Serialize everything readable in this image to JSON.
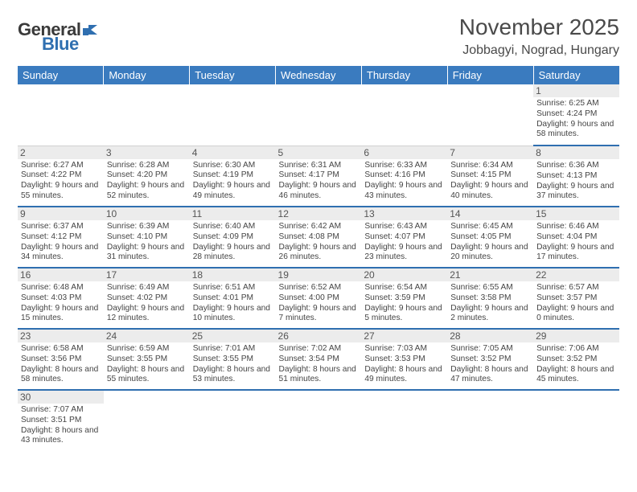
{
  "logo": {
    "word1": "General",
    "word2": "Blue"
  },
  "title": "November 2025",
  "location": "Jobbagyi, Nograd, Hungary",
  "colors": {
    "header_bg": "#3a7bbf",
    "header_fg": "#ffffff",
    "accent": "#2f6fb0",
    "daynum_bg": "#ececec",
    "text": "#444444"
  },
  "weekdays": [
    "Sunday",
    "Monday",
    "Tuesday",
    "Wednesday",
    "Thursday",
    "Friday",
    "Saturday"
  ],
  "weeks": [
    [
      null,
      null,
      null,
      null,
      null,
      null,
      {
        "n": "1",
        "sr": "Sunrise: 6:25 AM",
        "ss": "Sunset: 4:24 PM",
        "dl": "Daylight: 9 hours and 58 minutes."
      }
    ],
    [
      {
        "n": "2",
        "sr": "Sunrise: 6:27 AM",
        "ss": "Sunset: 4:22 PM",
        "dl": "Daylight: 9 hours and 55 minutes."
      },
      {
        "n": "3",
        "sr": "Sunrise: 6:28 AM",
        "ss": "Sunset: 4:20 PM",
        "dl": "Daylight: 9 hours and 52 minutes."
      },
      {
        "n": "4",
        "sr": "Sunrise: 6:30 AM",
        "ss": "Sunset: 4:19 PM",
        "dl": "Daylight: 9 hours and 49 minutes."
      },
      {
        "n": "5",
        "sr": "Sunrise: 6:31 AM",
        "ss": "Sunset: 4:17 PM",
        "dl": "Daylight: 9 hours and 46 minutes."
      },
      {
        "n": "6",
        "sr": "Sunrise: 6:33 AM",
        "ss": "Sunset: 4:16 PM",
        "dl": "Daylight: 9 hours and 43 minutes."
      },
      {
        "n": "7",
        "sr": "Sunrise: 6:34 AM",
        "ss": "Sunset: 4:15 PM",
        "dl": "Daylight: 9 hours and 40 minutes."
      },
      {
        "n": "8",
        "sr": "Sunrise: 6:36 AM",
        "ss": "Sunset: 4:13 PM",
        "dl": "Daylight: 9 hours and 37 minutes."
      }
    ],
    [
      {
        "n": "9",
        "sr": "Sunrise: 6:37 AM",
        "ss": "Sunset: 4:12 PM",
        "dl": "Daylight: 9 hours and 34 minutes."
      },
      {
        "n": "10",
        "sr": "Sunrise: 6:39 AM",
        "ss": "Sunset: 4:10 PM",
        "dl": "Daylight: 9 hours and 31 minutes."
      },
      {
        "n": "11",
        "sr": "Sunrise: 6:40 AM",
        "ss": "Sunset: 4:09 PM",
        "dl": "Daylight: 9 hours and 28 minutes."
      },
      {
        "n": "12",
        "sr": "Sunrise: 6:42 AM",
        "ss": "Sunset: 4:08 PM",
        "dl": "Daylight: 9 hours and 26 minutes."
      },
      {
        "n": "13",
        "sr": "Sunrise: 6:43 AM",
        "ss": "Sunset: 4:07 PM",
        "dl": "Daylight: 9 hours and 23 minutes."
      },
      {
        "n": "14",
        "sr": "Sunrise: 6:45 AM",
        "ss": "Sunset: 4:05 PM",
        "dl": "Daylight: 9 hours and 20 minutes."
      },
      {
        "n": "15",
        "sr": "Sunrise: 6:46 AM",
        "ss": "Sunset: 4:04 PM",
        "dl": "Daylight: 9 hours and 17 minutes."
      }
    ],
    [
      {
        "n": "16",
        "sr": "Sunrise: 6:48 AM",
        "ss": "Sunset: 4:03 PM",
        "dl": "Daylight: 9 hours and 15 minutes."
      },
      {
        "n": "17",
        "sr": "Sunrise: 6:49 AM",
        "ss": "Sunset: 4:02 PM",
        "dl": "Daylight: 9 hours and 12 minutes."
      },
      {
        "n": "18",
        "sr": "Sunrise: 6:51 AM",
        "ss": "Sunset: 4:01 PM",
        "dl": "Daylight: 9 hours and 10 minutes."
      },
      {
        "n": "19",
        "sr": "Sunrise: 6:52 AM",
        "ss": "Sunset: 4:00 PM",
        "dl": "Daylight: 9 hours and 7 minutes."
      },
      {
        "n": "20",
        "sr": "Sunrise: 6:54 AM",
        "ss": "Sunset: 3:59 PM",
        "dl": "Daylight: 9 hours and 5 minutes."
      },
      {
        "n": "21",
        "sr": "Sunrise: 6:55 AM",
        "ss": "Sunset: 3:58 PM",
        "dl": "Daylight: 9 hours and 2 minutes."
      },
      {
        "n": "22",
        "sr": "Sunrise: 6:57 AM",
        "ss": "Sunset: 3:57 PM",
        "dl": "Daylight: 9 hours and 0 minutes."
      }
    ],
    [
      {
        "n": "23",
        "sr": "Sunrise: 6:58 AM",
        "ss": "Sunset: 3:56 PM",
        "dl": "Daylight: 8 hours and 58 minutes."
      },
      {
        "n": "24",
        "sr": "Sunrise: 6:59 AM",
        "ss": "Sunset: 3:55 PM",
        "dl": "Daylight: 8 hours and 55 minutes."
      },
      {
        "n": "25",
        "sr": "Sunrise: 7:01 AM",
        "ss": "Sunset: 3:55 PM",
        "dl": "Daylight: 8 hours and 53 minutes."
      },
      {
        "n": "26",
        "sr": "Sunrise: 7:02 AM",
        "ss": "Sunset: 3:54 PM",
        "dl": "Daylight: 8 hours and 51 minutes."
      },
      {
        "n": "27",
        "sr": "Sunrise: 7:03 AM",
        "ss": "Sunset: 3:53 PM",
        "dl": "Daylight: 8 hours and 49 minutes."
      },
      {
        "n": "28",
        "sr": "Sunrise: 7:05 AM",
        "ss": "Sunset: 3:52 PM",
        "dl": "Daylight: 8 hours and 47 minutes."
      },
      {
        "n": "29",
        "sr": "Sunrise: 7:06 AM",
        "ss": "Sunset: 3:52 PM",
        "dl": "Daylight: 8 hours and 45 minutes."
      }
    ],
    [
      {
        "n": "30",
        "sr": "Sunrise: 7:07 AM",
        "ss": "Sunset: 3:51 PM",
        "dl": "Daylight: 8 hours and 43 minutes."
      },
      null,
      null,
      null,
      null,
      null,
      null
    ]
  ]
}
